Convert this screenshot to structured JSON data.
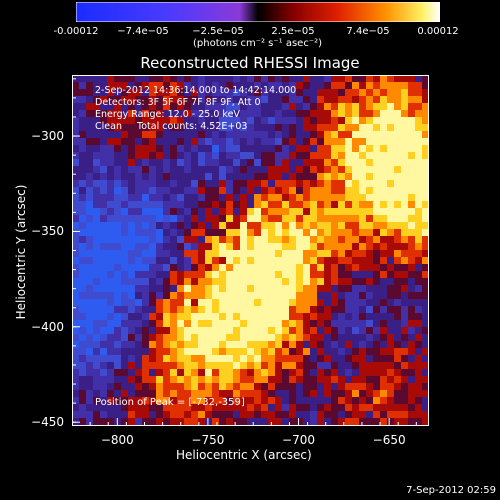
{
  "colorbar": {
    "ticks": [
      "-0.00012",
      "−7.4e−05",
      "−2.5e−05",
      "2.5e−05",
      "7.4e−05",
      "0.00012"
    ],
    "unit": "(photons cm⁻² s⁻¹ asec⁻²)"
  },
  "chart_data": {
    "type": "heatmap",
    "title": "Reconstructed RHESSI Image",
    "xlabel": "Heliocentric X (arcsec)",
    "ylabel": "Heliocentric Y (arcsec)",
    "xlim": [
      -825,
      -628
    ],
    "ylim": [
      -452,
      -268
    ],
    "xticks": [
      "-800",
      "-750",
      "-700",
      "-650"
    ],
    "yticks": [
      "-300",
      "-350",
      "-400",
      "-450"
    ],
    "value_range": [
      -0.00012,
      0.00012
    ],
    "peak": [
      -732,
      -359
    ],
    "annotations": {
      "line1": "2-Sep-2012 14:36:14.000 to 14:42:14.000",
      "line2": "Detectors: 3F 5F 6F 7F 8F 9F, Att 0",
      "line3": "Energy Range: 12.0 - 25.0 keV",
      "line4": "Clean     Total counts: 4.52E+03",
      "peak_label": "Position of Peak = [-732,-359]"
    }
  },
  "footer": {
    "date": "7-Sep-2012 02:59"
  }
}
